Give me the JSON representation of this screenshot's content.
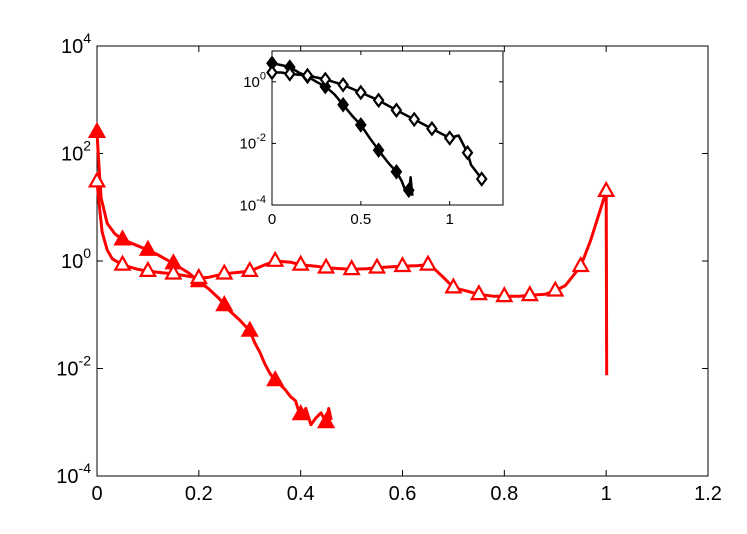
{
  "chart_data": [
    {
      "type": "line",
      "role": "main",
      "xlim": [
        0,
        1.2
      ],
      "ylim_log10": [
        -4,
        4
      ],
      "yscale": "log",
      "grid": false,
      "legend": "none",
      "xticks": [
        {
          "v": 0,
          "label": "0"
        },
        {
          "v": 0.2,
          "label": "0.2"
        },
        {
          "v": 0.4,
          "label": "0.4"
        },
        {
          "v": 0.6,
          "label": "0.6"
        },
        {
          "v": 0.8,
          "label": "0.8"
        },
        {
          "v": 1.0,
          "label": "1"
        },
        {
          "v": 1.2,
          "label": "1.2"
        }
      ],
      "yticks": [
        {
          "e": -4,
          "base": "10",
          "exp": "-4"
        },
        {
          "e": -2,
          "base": "10",
          "exp": "-2"
        },
        {
          "e": 0,
          "base": "10",
          "exp": "0"
        },
        {
          "e": 2,
          "base": "10",
          "exp": "2"
        },
        {
          "e": 4,
          "base": "10",
          "exp": "4"
        }
      ],
      "series": [
        {
          "color": "#ff0000",
          "marker": "triangle-filled",
          "points": [
            [
              0,
              250
            ],
            [
              0.003,
              80
            ],
            [
              0.008,
              15
            ],
            [
              0.02,
              5
            ],
            [
              0.035,
              3.2
            ],
            [
              0.05,
              2.5
            ],
            [
              0.07,
              2.1
            ],
            [
              0.1,
              1.6
            ],
            [
              0.12,
              1.3
            ],
            [
              0.15,
              0.9
            ],
            [
              0.18,
              0.6
            ],
            [
              0.2,
              0.42
            ],
            [
              0.22,
              0.3
            ],
            [
              0.24,
              0.2
            ],
            [
              0.26,
              0.12
            ],
            [
              0.28,
              0.08
            ],
            [
              0.3,
              0.05
            ],
            [
              0.31,
              0.03
            ],
            [
              0.32,
              0.02
            ],
            [
              0.33,
              0.012
            ],
            [
              0.34,
              0.008
            ],
            [
              0.35,
              0.006
            ],
            [
              0.36,
              0.005
            ],
            [
              0.37,
              0.004
            ],
            [
              0.38,
              0.003
            ],
            [
              0.39,
              0.0025
            ],
            [
              0.4,
              0.0012
            ],
            [
              0.41,
              0.0018
            ],
            [
              0.42,
              0.0009
            ],
            [
              0.43,
              0.0012
            ],
            [
              0.44,
              0.0015
            ],
            [
              0.45,
              0.001
            ],
            [
              0.455,
              0.0018
            ],
            [
              0.46,
              0.0011
            ]
          ],
          "marker_points": [
            [
              0,
              250
            ],
            [
              0.05,
              2.5
            ],
            [
              0.1,
              1.6
            ],
            [
              0.15,
              0.9
            ],
            [
              0.2,
              0.42
            ],
            [
              0.25,
              0.15
            ],
            [
              0.3,
              0.05
            ],
            [
              0.35,
              0.006
            ],
            [
              0.4,
              0.0014
            ],
            [
              0.45,
              0.001
            ]
          ]
        },
        {
          "color": "#ff0000",
          "marker": "triangle-open",
          "points": [
            [
              0,
              30
            ],
            [
              0.005,
              10
            ],
            [
              0.01,
              3.5
            ],
            [
              0.02,
              1.6
            ],
            [
              0.03,
              1.1
            ],
            [
              0.05,
              0.85
            ],
            [
              0.08,
              0.7
            ],
            [
              0.1,
              0.65
            ],
            [
              0.13,
              0.6
            ],
            [
              0.15,
              0.58
            ],
            [
              0.18,
              0.52
            ],
            [
              0.2,
              0.48
            ],
            [
              0.22,
              0.5
            ],
            [
              0.25,
              0.58
            ],
            [
              0.28,
              0.62
            ],
            [
              0.3,
              0.65
            ],
            [
              0.33,
              0.85
            ],
            [
              0.35,
              1.0
            ],
            [
              0.38,
              0.95
            ],
            [
              0.4,
              0.85
            ],
            [
              0.43,
              0.8
            ],
            [
              0.45,
              0.75
            ],
            [
              0.48,
              0.72
            ],
            [
              0.5,
              0.7
            ],
            [
              0.53,
              0.72
            ],
            [
              0.55,
              0.75
            ],
            [
              0.58,
              0.78
            ],
            [
              0.6,
              0.8
            ],
            [
              0.63,
              0.82
            ],
            [
              0.65,
              0.85
            ],
            [
              0.66,
              0.75
            ],
            [
              0.68,
              0.5
            ],
            [
              0.7,
              0.32
            ],
            [
              0.73,
              0.27
            ],
            [
              0.75,
              0.24
            ],
            [
              0.78,
              0.22
            ],
            [
              0.8,
              0.22
            ],
            [
              0.83,
              0.22
            ],
            [
              0.85,
              0.23
            ],
            [
              0.88,
              0.24
            ],
            [
              0.9,
              0.28
            ],
            [
              0.92,
              0.35
            ],
            [
              0.95,
              0.8
            ],
            [
              0.97,
              2.5
            ],
            [
              0.99,
              10
            ],
            [
              1.0,
              20
            ],
            [
              1.001,
              0.0075
            ]
          ],
          "marker_points": [
            [
              0,
              30
            ],
            [
              0.05,
              0.85
            ],
            [
              0.1,
              0.65
            ],
            [
              0.15,
              0.58
            ],
            [
              0.2,
              0.48
            ],
            [
              0.25,
              0.58
            ],
            [
              0.3,
              0.65
            ],
            [
              0.35,
              1.0
            ],
            [
              0.4,
              0.85
            ],
            [
              0.45,
              0.75
            ],
            [
              0.5,
              0.7
            ],
            [
              0.55,
              0.75
            ],
            [
              0.6,
              0.8
            ],
            [
              0.65,
              0.85
            ],
            [
              0.7,
              0.32
            ],
            [
              0.75,
              0.24
            ],
            [
              0.8,
              0.22
            ],
            [
              0.85,
              0.23
            ],
            [
              0.9,
              0.28
            ],
            [
              0.95,
              0.8
            ],
            [
              1.0,
              20
            ]
          ]
        }
      ]
    },
    {
      "type": "line",
      "role": "inset",
      "xlim": [
        0,
        1.3
      ],
      "ylim_log10": [
        -4,
        1
      ],
      "yscale": "log",
      "grid": false,
      "legend": "none",
      "xticks": [
        {
          "v": 0,
          "label": "0"
        },
        {
          "v": 0.5,
          "label": "0.5"
        },
        {
          "v": 1.0,
          "label": "1"
        }
      ],
      "yticks": [
        {
          "e": -4,
          "base": "10",
          "exp": "-4"
        },
        {
          "e": -2,
          "base": "10",
          "exp": "-2"
        },
        {
          "e": 0,
          "base": "10",
          "exp": "0"
        }
      ],
      "series": [
        {
          "color": "#000000",
          "marker": "diamond-filled",
          "points": [
            [
              0,
              4
            ],
            [
              0.05,
              3.5
            ],
            [
              0.1,
              3
            ],
            [
              0.15,
              2
            ],
            [
              0.2,
              1.5
            ],
            [
              0.25,
              1
            ],
            [
              0.3,
              0.7
            ],
            [
              0.35,
              0.4
            ],
            [
              0.4,
              0.18
            ],
            [
              0.45,
              0.08
            ],
            [
              0.5,
              0.04
            ],
            [
              0.55,
              0.015
            ],
            [
              0.6,
              0.006
            ],
            [
              0.65,
              0.0025
            ],
            [
              0.7,
              0.0012
            ],
            [
              0.73,
              0.0006
            ],
            [
              0.75,
              0.0003
            ],
            [
              0.77,
              0.0002
            ],
            [
              0.78,
              0.0008
            ],
            [
              0.79,
              0.0002
            ]
          ],
          "marker_points": [
            [
              0,
              4
            ],
            [
              0.1,
              3
            ],
            [
              0.2,
              1.5
            ],
            [
              0.3,
              0.7
            ],
            [
              0.4,
              0.18
            ],
            [
              0.5,
              0.04
            ],
            [
              0.6,
              0.006
            ],
            [
              0.7,
              0.0012
            ],
            [
              0.77,
              0.0003
            ]
          ]
        },
        {
          "color": "#000000",
          "marker": "diamond-open",
          "points": [
            [
              0,
              2
            ],
            [
              0.05,
              2
            ],
            [
              0.1,
              1.8
            ],
            [
              0.2,
              1.6
            ],
            [
              0.3,
              1.2
            ],
            [
              0.4,
              0.8
            ],
            [
              0.5,
              0.45
            ],
            [
              0.6,
              0.25
            ],
            [
              0.7,
              0.12
            ],
            [
              0.8,
              0.06
            ],
            [
              0.9,
              0.03
            ],
            [
              1.0,
              0.015
            ],
            [
              1.05,
              0.018
            ],
            [
              1.1,
              0.005
            ],
            [
              1.12,
              0.002
            ],
            [
              1.15,
              0.0012
            ],
            [
              1.18,
              0.0007
            ]
          ],
          "marker_points": [
            [
              0,
              2
            ],
            [
              0.1,
              1.8
            ],
            [
              0.2,
              1.6
            ],
            [
              0.3,
              1.2
            ],
            [
              0.4,
              0.8
            ],
            [
              0.5,
              0.45
            ],
            [
              0.6,
              0.25
            ],
            [
              0.7,
              0.12
            ],
            [
              0.8,
              0.06
            ],
            [
              0.9,
              0.03
            ],
            [
              1.0,
              0.015
            ],
            [
              1.1,
              0.005
            ],
            [
              1.18,
              0.0007
            ]
          ]
        }
      ]
    }
  ]
}
